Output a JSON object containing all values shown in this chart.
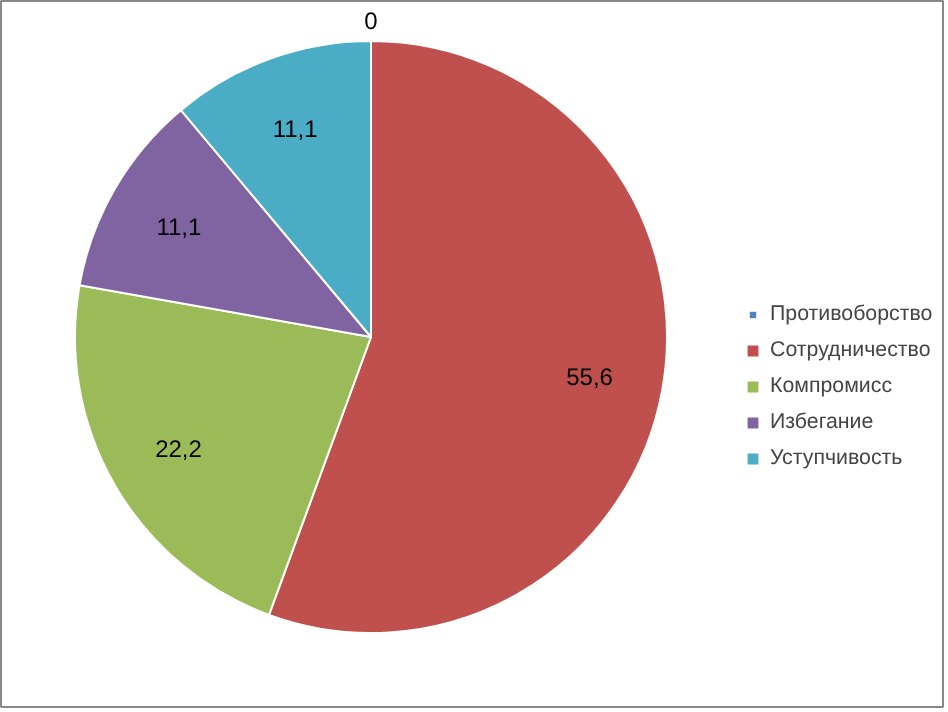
{
  "chart_data": {
    "type": "pie",
    "categories": [
      "Противоборство",
      "Сотрудничество",
      "Компромисс",
      "Избегание",
      "Уступчивость"
    ],
    "values": [
      0,
      55.6,
      22.2,
      11.1,
      11.1
    ],
    "value_labels": [
      "0",
      "55,6",
      "22,2",
      "11,1",
      "11,1"
    ],
    "colors": [
      "#4f81bd",
      "#c0504d",
      "#9bbb59",
      "#8064a2",
      "#4bacc6"
    ],
    "legend": "right"
  }
}
